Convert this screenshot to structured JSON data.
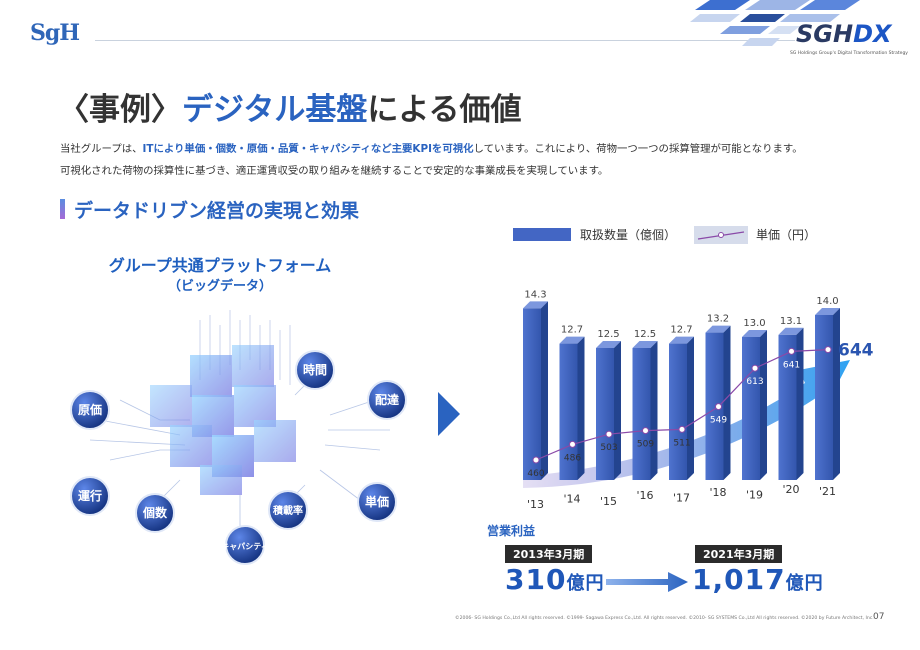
{
  "header": {
    "logo_text": "SgH",
    "brand_prefix": "SGH",
    "brand_dx": "DX",
    "brand_sub": "SG Holdings Group's Digital Transformation Strategy"
  },
  "title": {
    "prefix": "〈事例〉",
    "accent": "デジタル基盤",
    "suffix": "による価値"
  },
  "lead": {
    "line1_a": "当社グループは、",
    "line1_hl": "ITにより単価・個数・原価・品質・キャパシティなど主要KPIを可視化",
    "line1_b": "しています。これにより、荷物一つ一つの採算管理が可能となります。",
    "line2": "可視化された荷物の採算性に基づき、適正運賃収受の取り組みを継続することで安定的な事業成長を実現しています。"
  },
  "section_title": "データドリブン経営の実現と効果",
  "platform": {
    "title": "グループ共通プラットフォーム",
    "sub": "（ビッグデータ）",
    "nodes": [
      "時間",
      "原価",
      "配達",
      "運行",
      "個数",
      "積載率",
      "単価",
      "キャパシティ"
    ]
  },
  "chart_data": {
    "type": "bar",
    "categories": [
      "'13",
      "'14",
      "'15",
      "'16",
      "'17",
      "'18",
      "'19",
      "'20",
      "'21"
    ],
    "series": [
      {
        "name": "取扱数量（億個）",
        "values": [
          14.3,
          12.7,
          12.5,
          12.5,
          12.7,
          13.2,
          13.0,
          13.1,
          14.0
        ]
      },
      {
        "name": "単価（円）",
        "type": "line",
        "values": [
          460,
          486,
          503,
          509,
          511,
          549,
          613,
          641,
          644
        ]
      }
    ],
    "highlight_value": "644"
  },
  "profit": {
    "label": "営業利益",
    "year1": "2013年3月期",
    "value1": "310",
    "year2": "2021年3月期",
    "value2": "1,017",
    "unit": "億円"
  },
  "colors": {
    "accent": "#2a63c0",
    "bar": "#3d5fb8",
    "line": "#8a4aa8"
  },
  "footer": {
    "copyright": "©2006- SG Holdings Co.,Ltd All rights reserved.   ©1999- Sagawa Express Co.,Ltd.  All rights reserved.   ©2010- SG SYSTEMS Co.,Ltd All rights reserved.   ©2020 by Future Architect, Inc.",
    "page_number": "07"
  }
}
